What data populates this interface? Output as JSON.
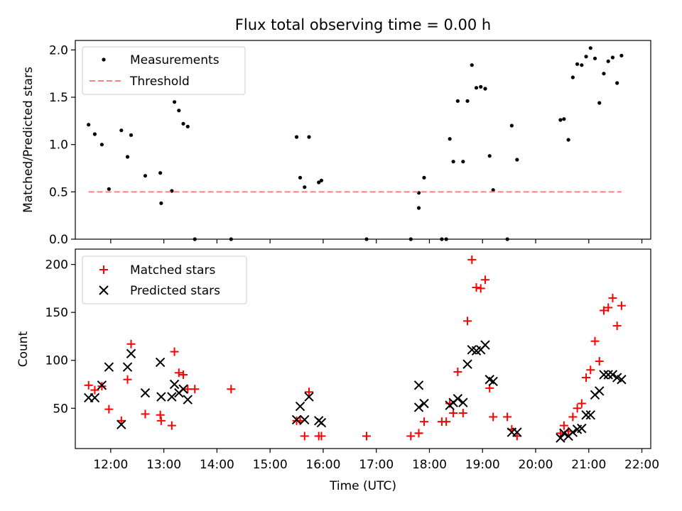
{
  "figure": {
    "title": "Flux total observing time = 0.00 h"
  },
  "chart_data": [
    {
      "type": "scatter",
      "ylabel": "Matched/Predicted stars",
      "xlim": [
        "11:20",
        "22:10"
      ],
      "ylim": [
        0,
        2.1
      ],
      "yticks": [
        {
          "value": 0.0,
          "label": "0.0"
        },
        {
          "value": 0.5,
          "label": "0.5"
        },
        {
          "value": 1.0,
          "label": "1.0"
        },
        {
          "value": 1.5,
          "label": "1.5"
        },
        {
          "value": 2.0,
          "label": "2.0"
        }
      ],
      "legend": {
        "position": "top-left",
        "entries": [
          "Measurements",
          "Threshold"
        ]
      },
      "series": [
        {
          "name": "Measurements",
          "marker": "dot",
          "color": "#000000",
          "points": [
            [
              "11:35",
              1.21
            ],
            [
              "11:42",
              1.11
            ],
            [
              "11:50",
              1.0
            ],
            [
              "11:58",
              0.53
            ],
            [
              "12:12",
              1.15
            ],
            [
              "12:19",
              0.87
            ],
            [
              "12:23",
              1.1
            ],
            [
              "12:39",
              0.67
            ],
            [
              "12:56",
              0.7
            ],
            [
              "12:57",
              0.38
            ],
            [
              "13:09",
              0.51
            ],
            [
              "13:12",
              1.45
            ],
            [
              "13:17",
              1.36
            ],
            [
              "13:22",
              1.22
            ],
            [
              "13:27",
              1.19
            ],
            [
              "13:35",
              0.0
            ],
            [
              "14:16",
              0.0
            ],
            [
              "15:30",
              1.08
            ],
            [
              "15:34",
              0.65
            ],
            [
              "15:39",
              0.55
            ],
            [
              "15:44",
              1.08
            ],
            [
              "15:55",
              0.6
            ],
            [
              "15:58",
              0.62
            ],
            [
              "16:49",
              0.0
            ],
            [
              "17:39",
              0.0
            ],
            [
              "17:48",
              0.49
            ],
            [
              "17:48",
              0.33
            ],
            [
              "17:54",
              0.65
            ],
            [
              "18:14",
              0.0
            ],
            [
              "18:19",
              0.0
            ],
            [
              "18:23",
              1.06
            ],
            [
              "18:27",
              0.82
            ],
            [
              "18:32",
              1.46
            ],
            [
              "18:38",
              0.82
            ],
            [
              "18:43",
              1.46
            ],
            [
              "18:48",
              1.84
            ],
            [
              "18:53",
              1.6
            ],
            [
              "18:58",
              1.61
            ],
            [
              "19:03",
              1.59
            ],
            [
              "19:08",
              0.88
            ],
            [
              "19:12",
              0.52
            ],
            [
              "19:28",
              0.0
            ],
            [
              "19:33",
              1.2
            ],
            [
              "19:39",
              0.84
            ],
            [
              "20:28",
              1.26
            ],
            [
              "20:32",
              1.27
            ],
            [
              "20:37",
              1.05
            ],
            [
              "20:42",
              1.71
            ],
            [
              "20:47",
              1.85
            ],
            [
              "20:52",
              1.84
            ],
            [
              "20:57",
              1.93
            ],
            [
              "21:02",
              2.02
            ],
            [
              "21:07",
              1.91
            ],
            [
              "21:12",
              1.44
            ],
            [
              "21:17",
              1.75
            ],
            [
              "21:22",
              1.88
            ],
            [
              "21:27",
              1.92
            ],
            [
              "21:32",
              1.65
            ],
            [
              "21:37",
              1.94
            ]
          ]
        },
        {
          "name": "Threshold",
          "style": "dashed",
          "color": "#ff7f7f",
          "x": [
            "11:35",
            "21:37"
          ],
          "y": [
            0.5,
            0.5
          ]
        }
      ]
    },
    {
      "type": "scatter",
      "xlabel": "Time (UTC)",
      "ylabel": "Count",
      "xlim": [
        "11:20",
        "22:10"
      ],
      "ylim": [
        8,
        216
      ],
      "xticks": [
        "12:00",
        "13:00",
        "14:00",
        "15:00",
        "16:00",
        "17:00",
        "18:00",
        "19:00",
        "20:00",
        "21:00",
        "22:00"
      ],
      "yticks": [
        {
          "value": 50,
          "label": "50"
        },
        {
          "value": 100,
          "label": "100"
        },
        {
          "value": 150,
          "label": "150"
        },
        {
          "value": 200,
          "label": "200"
        }
      ],
      "legend": {
        "position": "top-left",
        "entries": [
          "Matched stars",
          "Predicted stars"
        ]
      },
      "series": [
        {
          "name": "Matched stars",
          "marker": "plus",
          "color": "#ff0000",
          "points": [
            [
              "11:35",
              74
            ],
            [
              "11:42",
              69
            ],
            [
              "11:50",
              73
            ],
            [
              "11:58",
              49
            ],
            [
              "12:12",
              37
            ],
            [
              "12:19",
              80
            ],
            [
              "12:23",
              117
            ],
            [
              "12:39",
              44
            ],
            [
              "12:56",
              43
            ],
            [
              "12:57",
              37
            ],
            [
              "13:09",
              32
            ],
            [
              "13:12",
              109
            ],
            [
              "13:17",
              87
            ],
            [
              "13:22",
              85
            ],
            [
              "13:27",
              70
            ],
            [
              "13:35",
              70
            ],
            [
              "14:16",
              70
            ],
            [
              "15:30",
              37
            ],
            [
              "15:34",
              37
            ],
            [
              "15:39",
              21
            ],
            [
              "15:44",
              67
            ],
            [
              "15:55",
              21
            ],
            [
              "15:58",
              21
            ],
            [
              "16:49",
              21
            ],
            [
              "17:39",
              21
            ],
            [
              "17:48",
              24
            ],
            [
              "17:48",
              24
            ],
            [
              "17:54",
              36
            ],
            [
              "18:14",
              36
            ],
            [
              "18:19",
              36
            ],
            [
              "18:23",
              55
            ],
            [
              "18:27",
              45
            ],
            [
              "18:32",
              88
            ],
            [
              "18:38",
              45
            ],
            [
              "18:43",
              141
            ],
            [
              "18:48",
              205
            ],
            [
              "18:53",
              176
            ],
            [
              "18:58",
              175
            ],
            [
              "19:03",
              184
            ],
            [
              "19:08",
              71
            ],
            [
              "19:12",
              41
            ],
            [
              "19:28",
              41
            ],
            [
              "19:33",
              28
            ],
            [
              "19:39",
              21
            ],
            [
              "20:28",
              24
            ],
            [
              "20:32",
              32
            ],
            [
              "20:37",
              26
            ],
            [
              "20:42",
              41
            ],
            [
              "20:47",
              50
            ],
            [
              "20:52",
              55
            ],
            [
              "20:57",
              82
            ],
            [
              "21:02",
              90
            ],
            [
              "21:07",
              120
            ],
            [
              "21:12",
              99
            ],
            [
              "21:17",
              152
            ],
            [
              "21:22",
              155
            ],
            [
              "21:27",
              165
            ],
            [
              "21:32",
              136
            ],
            [
              "21:37",
              157
            ]
          ]
        },
        {
          "name": "Predicted stars",
          "marker": "x",
          "color": "#000000",
          "points": [
            [
              "11:35",
              61
            ],
            [
              "11:42",
              61
            ],
            [
              "11:50",
              74
            ],
            [
              "11:58",
              93
            ],
            [
              "12:12",
              33
            ],
            [
              "12:19",
              93
            ],
            [
              "12:23",
              107
            ],
            [
              "12:39",
              66
            ],
            [
              "12:56",
              98
            ],
            [
              "12:57",
              62
            ],
            [
              "13:09",
              62
            ],
            [
              "13:12",
              75
            ],
            [
              "13:17",
              66
            ],
            [
              "13:22",
              70
            ],
            [
              "13:27",
              59
            ],
            [
              "15:30",
              38
            ],
            [
              "15:34",
              52
            ],
            [
              "15:39",
              38
            ],
            [
              "15:44",
              62
            ],
            [
              "15:55",
              37
            ],
            [
              "15:58",
              35
            ],
            [
              "17:48",
              74
            ],
            [
              "17:48",
              51
            ],
            [
              "17:54",
              55
            ],
            [
              "18:23",
              53
            ],
            [
              "18:27",
              56
            ],
            [
              "18:32",
              60
            ],
            [
              "18:38",
              56
            ],
            [
              "18:43",
              96
            ],
            [
              "18:48",
              111
            ],
            [
              "18:53",
              110
            ],
            [
              "18:58",
              111
            ],
            [
              "19:03",
              116
            ],
            [
              "19:08",
              80
            ],
            [
              "19:12",
              78
            ],
            [
              "19:33",
              25
            ],
            [
              "19:39",
              25
            ],
            [
              "20:28",
              19
            ],
            [
              "20:32",
              24
            ],
            [
              "20:37",
              21
            ],
            [
              "20:42",
              25
            ],
            [
              "20:47",
              28
            ],
            [
              "20:52",
              29
            ],
            [
              "20:57",
              43
            ],
            [
              "21:02",
              43
            ],
            [
              "21:07",
              64
            ],
            [
              "21:12",
              68
            ],
            [
              "21:17",
              85
            ],
            [
              "21:22",
              85
            ],
            [
              "21:27",
              85
            ],
            [
              "21:32",
              82
            ],
            [
              "21:37",
              80
            ]
          ]
        }
      ]
    }
  ]
}
